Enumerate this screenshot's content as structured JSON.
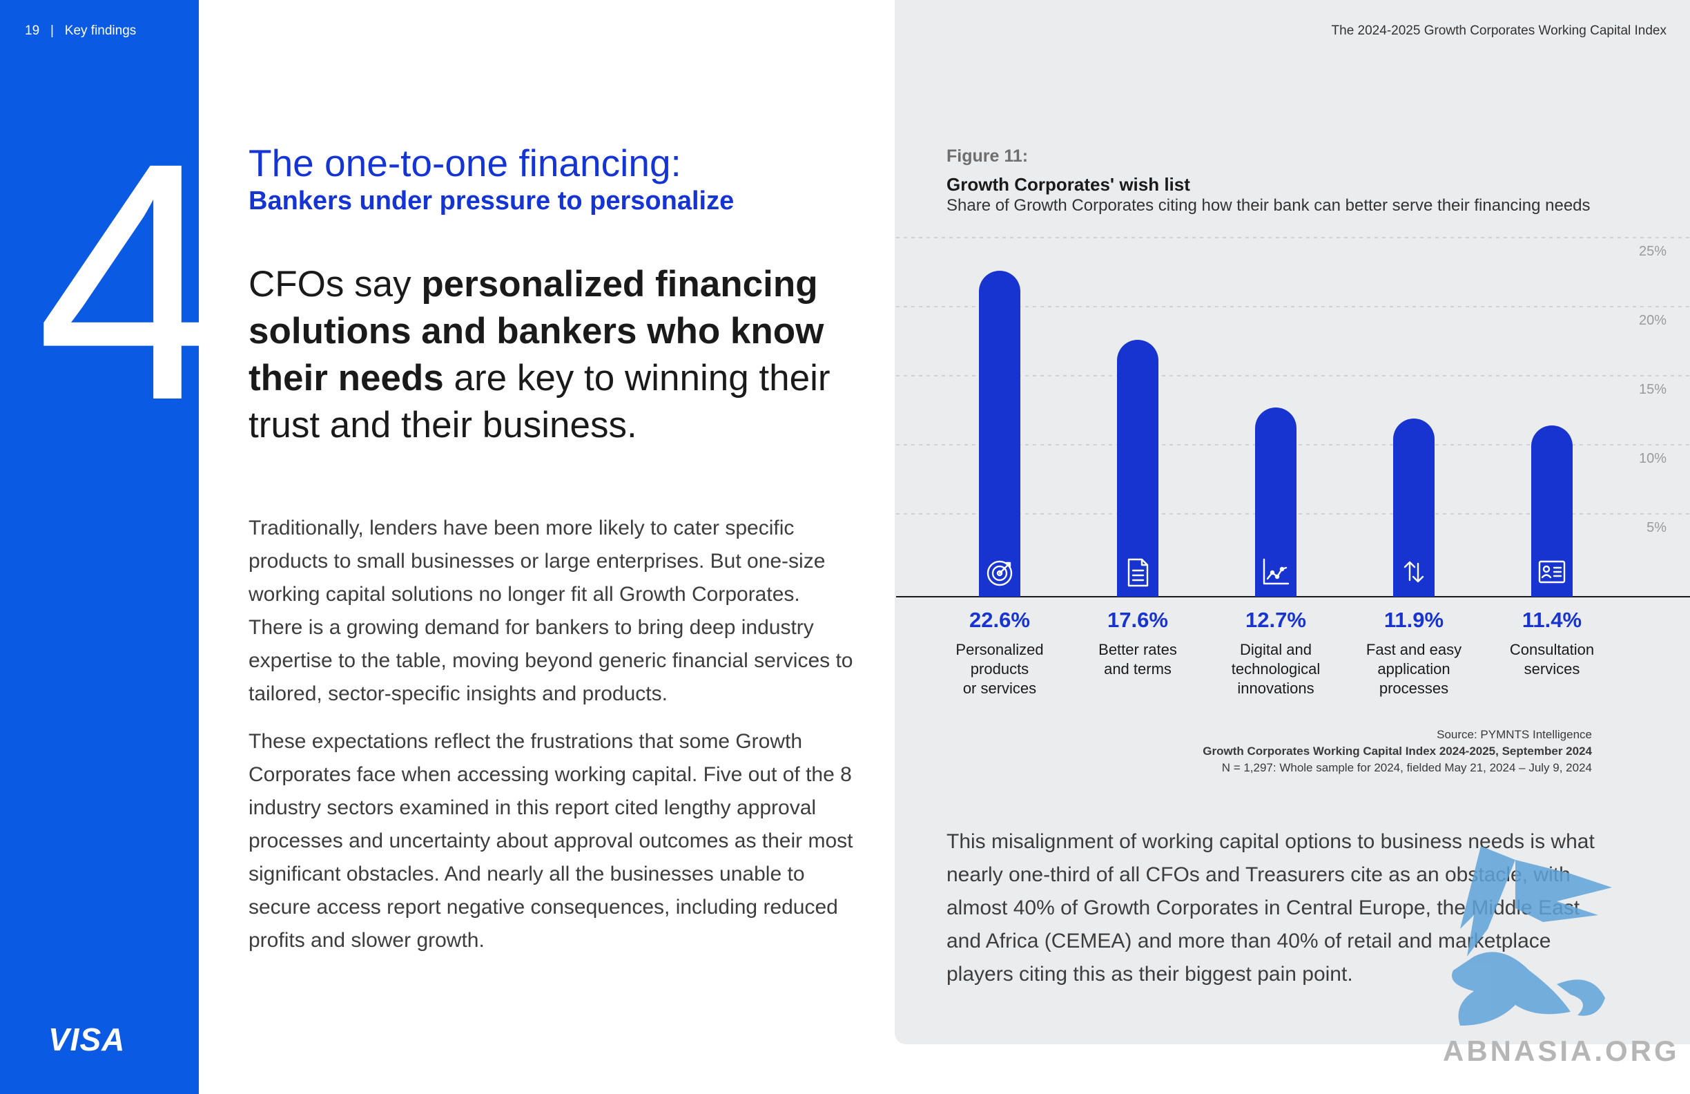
{
  "header": {
    "page_number": "19",
    "separator": "|",
    "section": "Key findings",
    "report_title": "The 2024-2025 Growth Corporates Working Capital Index"
  },
  "sidebar": {
    "big_number": "4",
    "logo_text": "VISA"
  },
  "main": {
    "heading_thin": "The one-to-one financing:",
    "heading_bold": "Bankers under pressure to personalize",
    "pull_quote": {
      "part1": "CFOs say ",
      "bold": "personalized financing solutions and bankers who know their needs",
      "part2": " are key to winning their trust and their business."
    },
    "paragraph1": "Traditionally, lenders have been more likely to cater specific products to small businesses or large enterprises. But one-size working capital solutions no longer fit all Growth Corporates. There is a growing demand for bankers to bring deep industry expertise to the table, moving beyond generic financial services to tailored, sector-specific insights and products.",
    "paragraph2": "These expectations reflect the frustrations that some Growth Corporates face when accessing working capital. Five out of the 8 industry sectors examined in this report cited lengthy approval processes and uncertainty about approval outcomes as their most significant obstacles. And nearly all the businesses unable to secure access report negative consequences, including reduced profits and slower growth."
  },
  "figure": {
    "label": "Figure 11:",
    "title": "Growth Corporates' wish list",
    "subtitle": "Share of Growth Corporates citing how their bank can better serve their financing needs"
  },
  "chart_data": {
    "type": "bar",
    "title": "Growth Corporates' wish list",
    "subtitle": "Share of Growth Corporates citing how their bank can better serve their financing needs",
    "categories": [
      "Personalized products or services",
      "Better rates and terms",
      "Digital and technological innovations",
      "Fast and easy application processes",
      "Consultation services"
    ],
    "category_lines": [
      [
        "Personalized",
        "products",
        "or services"
      ],
      [
        "Better rates",
        "and terms"
      ],
      [
        "Digital and",
        "technological",
        "innovations"
      ],
      [
        "Fast and easy",
        "application",
        "processes"
      ],
      [
        "Consultation",
        "services"
      ]
    ],
    "values": [
      22.6,
      17.6,
      12.7,
      11.9,
      11.4
    ],
    "value_labels": [
      "22.6%",
      "17.6%",
      "12.7%",
      "11.9%",
      "11.4%"
    ],
    "icons": [
      "target-icon",
      "document-icon",
      "line-chart-icon",
      "up-down-arrows-icon",
      "id-card-icon"
    ],
    "y_ticks": [
      5,
      10,
      15,
      20,
      25
    ],
    "y_tick_labels": [
      "5%",
      "10%",
      "15%",
      "20%",
      "25%"
    ],
    "ylim": [
      0,
      25
    ],
    "grid": true,
    "bar_color": "#1834d0",
    "value_label_color": "#1834d0",
    "gridline_color": "#c9c9c9",
    "xlabel": "",
    "ylabel": ""
  },
  "source": {
    "line1": "Source: PYMNTS Intelligence",
    "line2": "Growth Corporates Working Capital Index 2024-2025, September 2024",
    "line3": "N = 1,297: Whole sample for 2024, fielded May 21, 2024 – July 9, 2024"
  },
  "panel_paragraph": "This misalignment of working capital options to business needs is what nearly one-third of all CFOs and Treasurers cite as an obstacle, with almost 40% of Growth Corporates in Central Europe, the Middle East and Africa (CEMEA) and more than 40% of retail and marketplace players citing this as their biggest pain point.",
  "watermark": {
    "text": "ABNASIA.ORG"
  },
  "colors": {
    "sidebar_blue": "#0a5ae3",
    "heading_blue": "#1534d4",
    "panel_grey": "#ebecee"
  }
}
